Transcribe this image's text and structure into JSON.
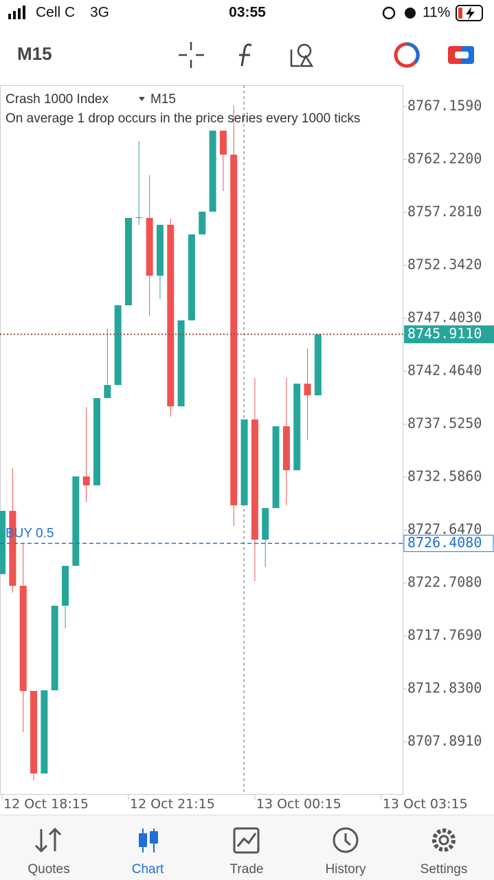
{
  "status_bar": {
    "carrier": "Cell C",
    "network": "3G",
    "time": "03:55",
    "battery": "11%"
  },
  "toolbar": {
    "timeframe": "M15"
  },
  "chart_data": {
    "type": "candlestick",
    "title": "Crash 1000 Index",
    "timeframe": "M15",
    "subtitle": "On average 1 drop occurs in the price series every 1000 ticks",
    "up_color": "#26a69a",
    "down_color": "#ef5350",
    "open": [
      8723.54,
      8729.44,
      8722.45,
      8712.64,
      8704.94,
      8712.7,
      8720.59,
      8724.31,
      8732.65,
      8731.82,
      8739.96,
      8741.18,
      8748.62,
      8756.77,
      8756.77,
      8751.38,
      8756.13,
      8739.19,
      8747.21,
      8755.23,
      8757.35,
      8764.91,
      8762.67,
      8729.96,
      8737.97,
      8726.75,
      8729.7,
      8737.33,
      8733.23,
      8741.31,
      8740.22
    ],
    "high": [
      8729.44,
      8733.42,
      8726.43,
      8712.64,
      8712.7,
      8720.59,
      8724.31,
      8732.65,
      8739.13,
      8739.96,
      8746.44,
      8748.62,
      8756.77,
      8763.95,
      8760.75,
      8756.13,
      8756.7,
      8747.21,
      8755.23,
      8757.35,
      8764.91,
      8764.91,
      8767.29,
      8737.97,
      8741.82,
      8729.7,
      8737.33,
      8741.82,
      8741.31,
      8744.58,
      8745.911
    ],
    "low": [
      8723.54,
      8721.81,
      8708.79,
      8704.3,
      8704.94,
      8712.7,
      8718.48,
      8724.31,
      8730.28,
      8731.82,
      8739.96,
      8741.18,
      8748.62,
      8756.13,
      8747.66,
      8749.2,
      8738.23,
      8739.19,
      8747.21,
      8755.23,
      8757.35,
      8759.27,
      8728.03,
      8729.96,
      8722.9,
      8724.18,
      8729.7,
      8729.96,
      8733.23,
      8736.05,
      8740.22
    ],
    "close": [
      8729.44,
      8722.45,
      8712.64,
      8704.94,
      8712.7,
      8720.59,
      8724.31,
      8732.65,
      8731.82,
      8739.96,
      8741.18,
      8748.62,
      8756.77,
      8756.83,
      8751.38,
      8756.13,
      8739.19,
      8747.21,
      8755.23,
      8757.35,
      8764.91,
      8762.67,
      8729.96,
      8737.97,
      8726.75,
      8729.7,
      8737.33,
      8733.23,
      8741.31,
      8740.22,
      8745.911
    ],
    "xlim": [
      -0.2,
      38.1
    ],
    "xticks": [
      {
        "value": 0,
        "label": "12 Oct 18:15"
      },
      {
        "value": 12,
        "label": "12 Oct 21:15"
      },
      {
        "value": 24,
        "label": "13 Oct 00:15"
      },
      {
        "value": 36,
        "label": "13 Oct 03:15"
      }
    ],
    "ylim": [
      8703.02,
      8769.147
    ],
    "yticks": [
      {
        "value": 8767.159,
        "label": "8767.1590"
      },
      {
        "value": 8762.22,
        "label": "8762.2200"
      },
      {
        "value": 8757.281,
        "label": "8757.2810"
      },
      {
        "value": 8752.342,
        "label": "8752.3420"
      },
      {
        "value": 8747.403,
        "label": "8747.4030"
      },
      {
        "value": 8742.464,
        "label": "8742.4640"
      },
      {
        "value": 8737.525,
        "label": "8737.5250"
      },
      {
        "value": 8732.586,
        "label": "8732.5860"
      },
      {
        "value": 8727.647,
        "label": "8727.6470"
      },
      {
        "value": 8722.708,
        "label": "8722.7080"
      },
      {
        "value": 8717.769,
        "label": "8717.7690"
      },
      {
        "value": 8712.83,
        "label": "8712.8300"
      },
      {
        "value": 8707.891,
        "label": "8707.8910"
      }
    ],
    "current_price": {
      "value": 8745.911,
      "label": "8745.9110",
      "color": "#26a69a"
    },
    "position": {
      "text": "BUY 0.5",
      "value": 8726.408,
      "label": "8726.4080",
      "color": "#1e6fd9"
    }
  },
  "tabs": [
    "Quotes",
    "Chart",
    "Trade",
    "History",
    "Settings"
  ]
}
